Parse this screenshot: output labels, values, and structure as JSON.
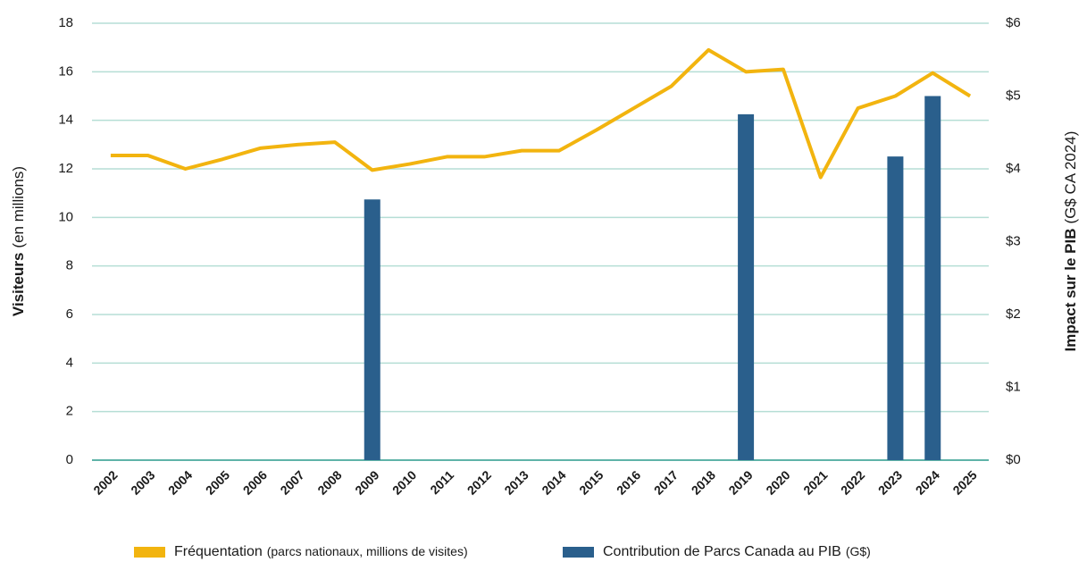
{
  "chart_data": {
    "type": "bar-line",
    "categories": [
      "2002",
      "2003",
      "2004",
      "2005",
      "2006",
      "2007",
      "2008",
      "2009",
      "2010",
      "2011",
      "2012",
      "2013",
      "2014",
      "2015",
      "2016",
      "2017",
      "2018",
      "2019",
      "2020",
      "2021",
      "2022",
      "2023",
      "2024",
      "2025"
    ],
    "ylabel": {
      "bold": "Visiteurs",
      "rest": "(en millions)"
    },
    "y2label": {
      "bold": "Impact sur le PIB",
      "rest": "(G$ CA 2024)"
    },
    "ylim": [
      0,
      18
    ],
    "yticks": [
      0,
      2,
      4,
      6,
      8,
      10,
      12,
      14,
      16,
      18
    ],
    "y2lim": [
      0,
      6
    ],
    "y2ticks": [
      {
        "value": 0,
        "label": "$0"
      },
      {
        "value": 1,
        "label": "$1"
      },
      {
        "value": 2,
        "label": "$2"
      },
      {
        "value": 3,
        "label": "$3"
      },
      {
        "value": 4,
        "label": "$4"
      },
      {
        "value": 5,
        "label": "$5"
      },
      {
        "value": 6,
        "label": "$6"
      }
    ],
    "grid": true,
    "series": [
      {
        "name": "Fréquentation",
        "note": "(parcs nationaux, millions de visites)",
        "type": "line",
        "color": "#f2b40f",
        "values": [
          12.55,
          12.55,
          12.0,
          12.4,
          12.85,
          13.0,
          13.1,
          11.95,
          12.2,
          12.5,
          12.5,
          12.75,
          12.75,
          13.6,
          14.5,
          15.4,
          16.9,
          16.0,
          16.1,
          11.65,
          14.5,
          15.0,
          15.95,
          15.0
        ]
      },
      {
        "name": "Contribution de Parcs Canada au PIB",
        "note": "(G$)",
        "type": "bar",
        "axis": "y2",
        "color": "#2a5f8c",
        "values": [
          null,
          null,
          null,
          null,
          null,
          null,
          null,
          3.58,
          null,
          null,
          null,
          null,
          null,
          null,
          null,
          null,
          null,
          4.75,
          null,
          null,
          null,
          4.17,
          5.0,
          null
        ]
      }
    ]
  }
}
